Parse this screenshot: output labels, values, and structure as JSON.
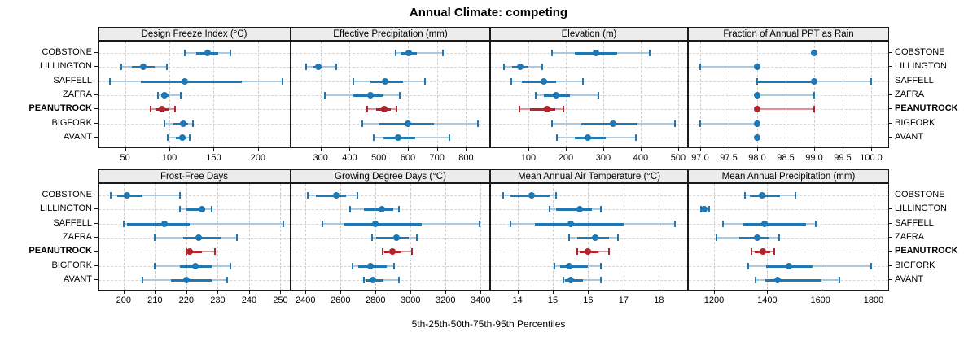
{
  "title": "Annual Climate: competing",
  "caption": "5th-25th-50th-75th-95th Percentiles",
  "sites": [
    "COBSTONE",
    "LILLINGTON",
    "SAFFELL",
    "ZAFRA",
    "PEANUTROCK",
    "BIGFORK",
    "AVANT"
  ],
  "highlight_site": "PEANUTROCK",
  "colors": {
    "series_main": "#1f77b4",
    "series_light": "#a8cbe2",
    "highlight_main": "#b2232a",
    "highlight_light": "#d99295",
    "strip_bg": "#ececec",
    "grid_line": "#cdcdcd",
    "panel_border": "#1a1a1a"
  },
  "chart_data": [
    {
      "type": "dot-whisker",
      "title": "Design Freeze Index (°C)",
      "grid_row": 0,
      "grid_col": 0,
      "xlim": [
        20,
        236
      ],
      "ticks": [
        50,
        100,
        150,
        200
      ],
      "tick_labels": [
        "50",
        "100",
        "150",
        "200"
      ],
      "percentile_names": [
        "p5",
        "p25",
        "p50",
        "p75",
        "p95"
      ],
      "percentile_values": [
        [
          117,
          130,
          143,
          155,
          169
        ],
        [
          46,
          58,
          71,
          83,
          97
        ],
        [
          33,
          68,
          117,
          182,
          228
        ],
        [
          87,
          91,
          94,
          100,
          113
        ],
        [
          79,
          85,
          92,
          99,
          106
        ],
        [
          94,
          105,
          116,
          121,
          127
        ],
        [
          98,
          107,
          115,
          119,
          123
        ]
      ]
    },
    {
      "type": "dot-whisker",
      "title": "Effective Precipitation (mm)",
      "grid_row": 0,
      "grid_col": 1,
      "xlim": [
        200,
        880
      ],
      "ticks": [
        300,
        400,
        500,
        600,
        700,
        800
      ],
      "tick_labels": [
        "300",
        "400",
        "500",
        "600",
        "700",
        "800"
      ],
      "percentile_values": [
        [
          558,
          575,
          602,
          630,
          720
        ],
        [
          251,
          274,
          291,
          306,
          354
        ],
        [
          414,
          472,
          523,
          583,
          659
        ],
        [
          316,
          412,
          472,
          514,
          572
        ],
        [
          459,
          491,
          518,
          541,
          560
        ],
        [
          443,
          500,
          600,
          690,
          840
        ],
        [
          482,
          517,
          567,
          624,
          742
        ]
      ]
    },
    {
      "type": "dot-whisker",
      "title": "Elevation (m)",
      "grid_row": 0,
      "grid_col": 2,
      "xlim": [
        0,
        524
      ],
      "ticks": [
        100,
        200,
        300,
        400,
        500
      ],
      "tick_labels": [
        "100",
        "200",
        "300",
        "400",
        "500"
      ],
      "percentile_values": [
        [
          163,
          224,
          281,
          338,
          424
        ],
        [
          34,
          56,
          79,
          99,
          138
        ],
        [
          54,
          83,
          141,
          174,
          245
        ],
        [
          119,
          142,
          174,
          210,
          286
        ],
        [
          76,
          105,
          149,
          172,
          193
        ],
        [
          163,
          241,
          327,
          391,
          491
        ],
        [
          177,
          224,
          259,
          306,
          388
        ]
      ]
    },
    {
      "type": "dot-whisker",
      "title": "Fraction of Annual PPT as Rain",
      "grid_row": 0,
      "grid_col": 3,
      "xlim": [
        96.8,
        100.3
      ],
      "ticks": [
        97,
        97.5,
        98,
        98.5,
        99,
        99.5,
        100
      ],
      "tick_labels": [
        "97.0",
        "97.5",
        "98.0",
        "98.5",
        "99.0",
        "99.5",
        "100.0"
      ],
      "percentile_values": [
        [
          99,
          99,
          99,
          99,
          99
        ],
        [
          97,
          98,
          98,
          98,
          98
        ],
        [
          98,
          98,
          99,
          99,
          100
        ],
        [
          98,
          98,
          98,
          98,
          99
        ],
        [
          98,
          98,
          98,
          98,
          99
        ],
        [
          97,
          98,
          98,
          98,
          98
        ],
        [
          98,
          98,
          98,
          98,
          98
        ]
      ]
    },
    {
      "type": "dot-whisker",
      "title": "Frost-Free Days",
      "grid_row": 1,
      "grid_col": 0,
      "xlim": [
        192,
        253
      ],
      "ticks": [
        200,
        210,
        220,
        230,
        240,
        250
      ],
      "tick_labels": [
        "200",
        "210",
        "220",
        "230",
        "240",
        "250"
      ],
      "percentile_values": [
        [
          196,
          198,
          201,
          206,
          218
        ],
        [
          218,
          220,
          225,
          226,
          228
        ],
        [
          200,
          201,
          213,
          221,
          251
        ],
        [
          210,
          219,
          224,
          231,
          236
        ],
        [
          220,
          220,
          221,
          225,
          229
        ],
        [
          210,
          218,
          223,
          228,
          234
        ],
        [
          206,
          215,
          220,
          228,
          233
        ]
      ]
    },
    {
      "type": "dot-whisker",
      "title": "Growing Degree Days (°C)",
      "grid_row": 1,
      "grid_col": 1,
      "xlim": [
        2320,
        3450
      ],
      "ticks": [
        2400,
        2600,
        2800,
        3000,
        3200,
        3400
      ],
      "tick_labels": [
        "2400",
        "2600",
        "2800",
        "3000",
        "3200",
        "3400"
      ],
      "percentile_values": [
        [
          2412,
          2460,
          2574,
          2630,
          2695
        ],
        [
          2655,
          2735,
          2835,
          2900,
          2935
        ],
        [
          2495,
          2620,
          2800,
          3065,
          3395
        ],
        [
          2780,
          2805,
          2920,
          2990,
          3035
        ],
        [
          2840,
          2850,
          2895,
          2950,
          3010
        ],
        [
          2670,
          2700,
          2770,
          2865,
          2905
        ],
        [
          2735,
          2745,
          2785,
          2845,
          2935
        ]
      ]
    },
    {
      "type": "dot-whisker",
      "title": "Mean Annual Air Temperature (°C)",
      "grid_row": 1,
      "grid_col": 2,
      "xlim": [
        13.25,
        18.8
      ],
      "ticks": [
        14,
        15,
        16,
        17,
        18
      ],
      "tick_labels": [
        "14",
        "15",
        "16",
        "17",
        "18"
      ],
      "percentile_values": [
        [
          13.6,
          13.8,
          14.4,
          14.9,
          15.1
        ],
        [
          14.9,
          15.1,
          15.75,
          16.1,
          16.35
        ],
        [
          13.8,
          14.5,
          15.5,
          17.0,
          18.45
        ],
        [
          15.45,
          15.7,
          16.2,
          16.6,
          16.85
        ],
        [
          15.7,
          15.75,
          16.0,
          16.3,
          16.6
        ],
        [
          15.05,
          15.2,
          15.45,
          16.0,
          16.35
        ],
        [
          15.3,
          15.35,
          15.5,
          15.85,
          16.35
        ]
      ]
    },
    {
      "type": "dot-whisker",
      "title": "Mean Annual Precipitation (mm)",
      "grid_row": 1,
      "grid_col": 3,
      "xlim": [
        1105,
        1855
      ],
      "ticks": [
        1200,
        1400,
        1600,
        1800
      ],
      "tick_labels": [
        "1200",
        "1400",
        "1600",
        "1800"
      ],
      "percentile_values": [
        [
          1315,
          1335,
          1382,
          1448,
          1505
        ],
        [
          1150,
          1155,
          1162,
          1172,
          1183
        ],
        [
          1233,
          1310,
          1390,
          1545,
          1582
        ],
        [
          1210,
          1296,
          1362,
          1408,
          1445
        ],
        [
          1342,
          1352,
          1385,
          1410,
          1426
        ],
        [
          1327,
          1397,
          1480,
          1570,
          1790
        ],
        [
          1357,
          1392,
          1440,
          1605,
          1671
        ]
      ]
    }
  ]
}
